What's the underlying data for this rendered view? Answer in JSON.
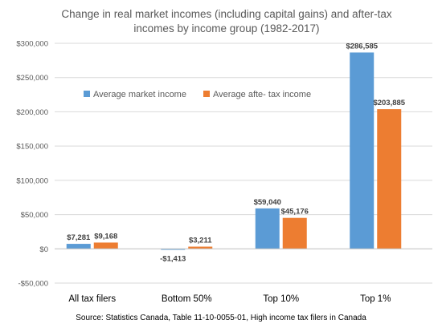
{
  "chart_data": {
    "type": "bar",
    "title": [
      "Change in real market incomes (including capital gains) and after-tax",
      "incomes by income group (1982-2017)"
    ],
    "categories": [
      "All tax filers",
      "Bottom 50%",
      "Top 10%",
      "Top 1%"
    ],
    "series": [
      {
        "name": "Average market income",
        "color": "#5b9bd5",
        "values": [
          7281,
          -1413,
          59040,
          286585
        ],
        "labels": [
          "$7,281",
          "-$1,413",
          "$59,040",
          "$286,585"
        ]
      },
      {
        "name": "Average afte- tax income",
        "color": "#ed7d31",
        "values": [
          9168,
          3211,
          45176,
          203885
        ],
        "labels": [
          "$9,168",
          "$3,211",
          "$45,176",
          "$203,885"
        ]
      }
    ],
    "ylim": [
      -50000,
      300000
    ],
    "yticks": [
      -50000,
      0,
      50000,
      100000,
      150000,
      200000,
      250000,
      300000
    ],
    "ytick_labels": [
      "-$50,000",
      "$0",
      "$50,000",
      "$100,000",
      "$150,000",
      "$200,000",
      "$250,000",
      "$300,000"
    ],
    "grid": true,
    "legend_position": "upper-left",
    "source": "Source: Statistics Canada, Table 11-10-0055-01, High income tax filers in Canada"
  }
}
